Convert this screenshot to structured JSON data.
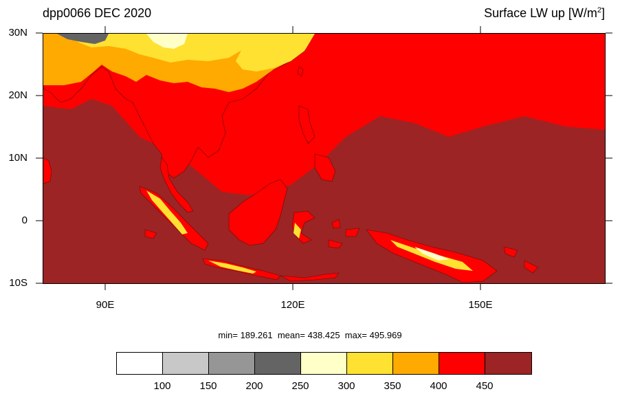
{
  "title": {
    "left": "dpp0066 DEC 2020",
    "right_main": "Surface LW up [W/m",
    "right_sup": "2",
    "right_close": "]"
  },
  "axes": {
    "lat_labels": [
      "30N",
      "20N",
      "10N",
      "0",
      "10S"
    ],
    "lon_labels": [
      "90E",
      "120E",
      "150E"
    ]
  },
  "stats": {
    "min_label": "min=",
    "min": "189.261",
    "mean_label": "mean=",
    "mean": "438.425",
    "max_label": "max=",
    "max": "495.969"
  },
  "colorbar": {
    "colors": [
      "#ffffff",
      "#c8c8c8",
      "#969696",
      "#646464",
      "#ffffc8",
      "#ffe132",
      "#ffaa00",
      "#ff0000",
      "#9c2424"
    ],
    "labels": [
      "100",
      "150",
      "200",
      "250",
      "300",
      "350",
      "400",
      "450"
    ]
  },
  "map": {
    "ocean_color": "#9c2424",
    "coast_color": "#5a1010"
  }
}
